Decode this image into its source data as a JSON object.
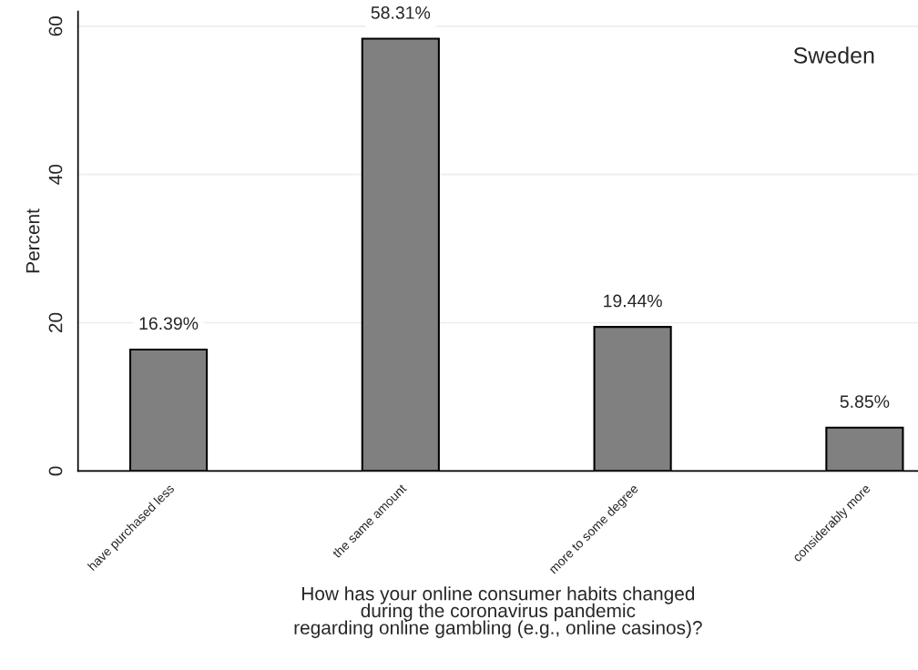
{
  "chart_data": {
    "type": "bar",
    "categories": [
      "have purchased less",
      "the same amount",
      "more to some degree",
      "considerably more"
    ],
    "values": [
      16.39,
      58.31,
      19.44,
      5.85
    ],
    "value_labels": [
      "16.39%",
      "58.31%",
      "19.44%",
      "5.85%"
    ],
    "color": "#808080",
    "ylim": [
      0,
      62
    ],
    "yticks": [
      0,
      20,
      40,
      60
    ],
    "ylabel": "Percent",
    "xlabel": "How has your online consumer habits changed\nduring the coronavirus pandemic\nregarding online gambling (e.g., online casinos)?",
    "annotations": [
      "Sweden"
    ],
    "grid": "y"
  }
}
